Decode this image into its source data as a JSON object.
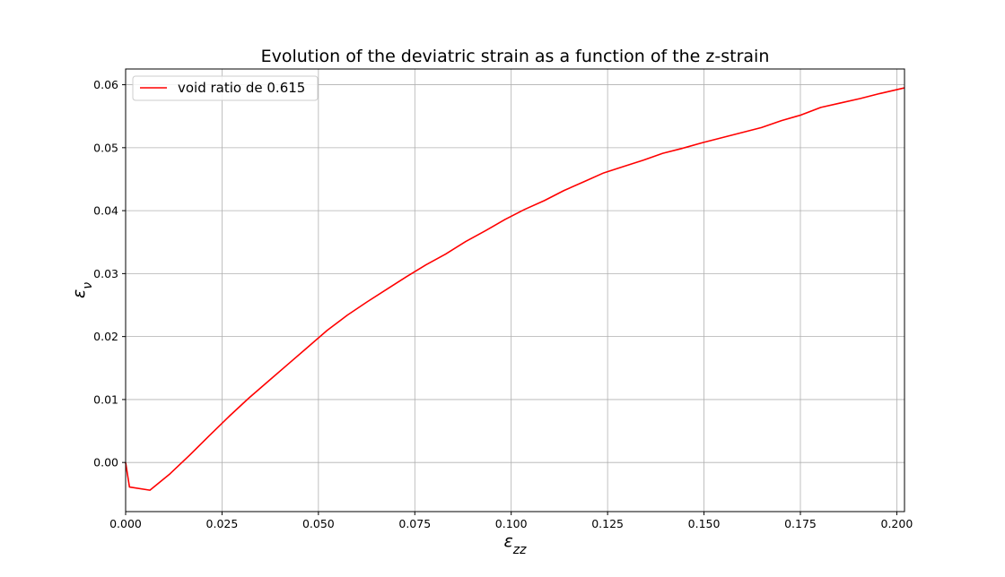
{
  "chart_data": {
    "type": "line",
    "title": "Evolution of the deviatric strain as a function of the z-strain",
    "xlabel": "ε",
    "xlabel_sub": "zz",
    "ylabel": "ε",
    "ylabel_sub": "ν",
    "xlim": [
      0.0,
      0.202
    ],
    "ylim": [
      -0.0078,
      0.0625
    ],
    "grid": true,
    "legend_position": "upper left",
    "x_ticks": [
      "0.000",
      "0.025",
      "0.050",
      "0.075",
      "0.100",
      "0.125",
      "0.150",
      "0.175",
      "0.200"
    ],
    "y_ticks": [
      "0.00",
      "0.01",
      "0.02",
      "0.03",
      "0.04",
      "0.05",
      "0.06"
    ],
    "x_tick_values": [
      0.0,
      0.025,
      0.05,
      0.075,
      0.1,
      0.125,
      0.15,
      0.175,
      0.2
    ],
    "y_tick_values": [
      0.0,
      0.01,
      0.02,
      0.03,
      0.04,
      0.05,
      0.06
    ],
    "series": [
      {
        "name": "void ratio de 0.615",
        "color": "#ff0000",
        "x": [
          0.0,
          0.001,
          0.0063,
          0.0115,
          0.0165,
          0.0216,
          0.0268,
          0.0319,
          0.037,
          0.0421,
          0.0472,
          0.0523,
          0.0575,
          0.0626,
          0.0677,
          0.0728,
          0.0779,
          0.083,
          0.0882,
          0.0933,
          0.0984,
          0.1035,
          0.1086,
          0.1137,
          0.1189,
          0.124,
          0.1291,
          0.1342,
          0.1393,
          0.1444,
          0.1496,
          0.1547,
          0.1598,
          0.1649,
          0.1701,
          0.1752,
          0.1803,
          0.1854,
          0.1905,
          0.1956,
          0.202
        ],
        "y": [
          0.0,
          -0.0039,
          -0.0044,
          -0.0018,
          0.0011,
          0.0042,
          0.0073,
          0.0102,
          0.0129,
          0.0156,
          0.0183,
          0.021,
          0.0234,
          0.0255,
          0.0275,
          0.0295,
          0.0314,
          0.0331,
          0.0351,
          0.0368,
          0.0386,
          0.0402,
          0.0416,
          0.0432,
          0.0446,
          0.046,
          0.047,
          0.048,
          0.0491,
          0.0499,
          0.0508,
          0.0516,
          0.0524,
          0.0532,
          0.0543,
          0.0552,
          0.0564,
          0.0571,
          0.0578,
          0.0586,
          0.0595
        ]
      }
    ]
  }
}
